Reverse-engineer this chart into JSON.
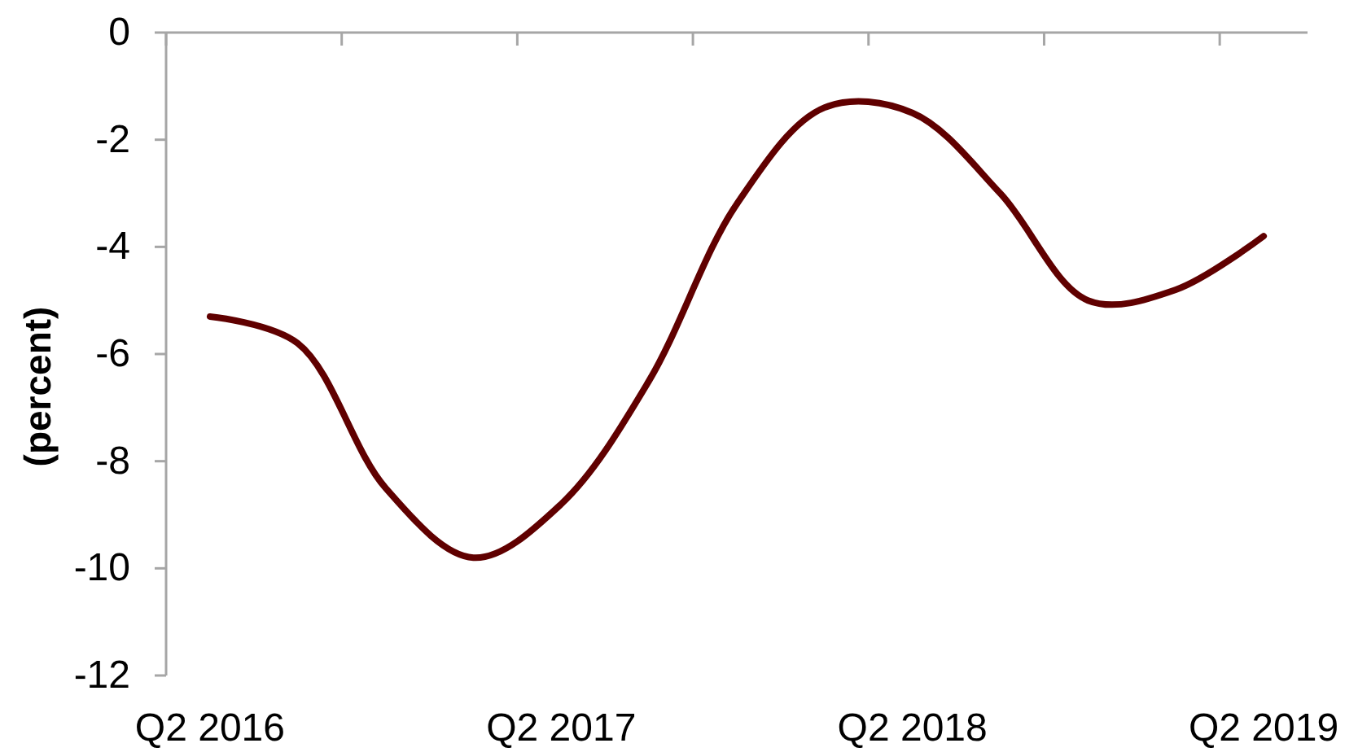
{
  "chart_data": {
    "type": "line",
    "ylabel": "(percent)",
    "categories": [
      "Q2 2016",
      null,
      null,
      null,
      "Q2 2017",
      null,
      null,
      null,
      "Q2 2018",
      null,
      null,
      null,
      "Q2 2019"
    ],
    "series": [
      {
        "color": "#600000",
        "values": [
          -5.3,
          -5.8,
          -8.5,
          -9.8,
          -8.8,
          -6.5,
          -3.2,
          -1.4,
          -1.5,
          -3.0,
          -5.0,
          -4.8,
          -3.8
        ]
      }
    ],
    "ylim": [
      -12,
      0
    ],
    "yticks": [
      0,
      -2,
      -4,
      -6,
      -8,
      -10,
      -12
    ],
    "line_style": "solid"
  }
}
